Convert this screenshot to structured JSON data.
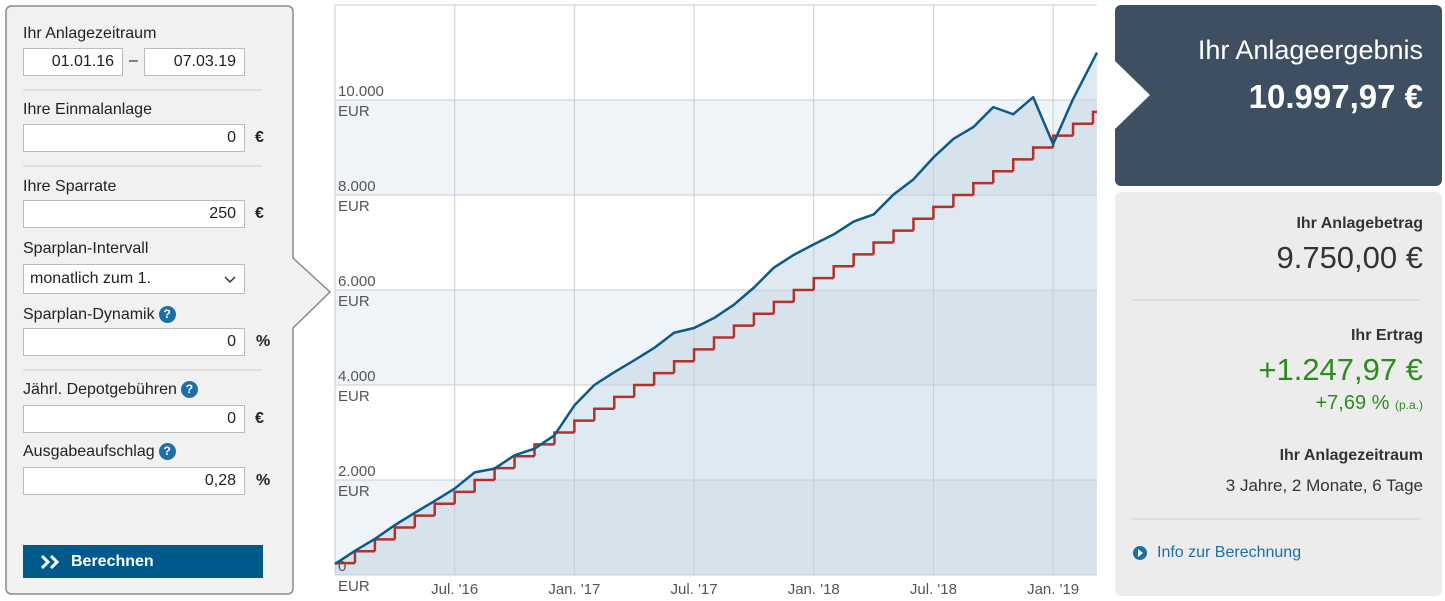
{
  "form": {
    "period_label": "Ihr Anlagezeitraum",
    "date_from": "01.01.16",
    "date_sep": "–",
    "date_to": "07.03.19",
    "lump_label": "Ihre Einmalanlage",
    "lump_value": "0",
    "lump_unit": "€",
    "rate_label": "Ihre Sparrate",
    "rate_value": "250",
    "rate_unit": "€",
    "interval_label": "Sparplan-Intervall",
    "interval_value": "monatlich zum 1.",
    "dynamic_label": "Sparplan-Dynamik",
    "dynamic_value": "0",
    "dynamic_unit": "%",
    "fee_label": "Jährl. Depotgebühren",
    "fee_value": "0",
    "fee_unit": "€",
    "surcharge_label": "Ausgabeaufschlag",
    "surcharge_value": "0,28",
    "surcharge_unit": "%",
    "help": "?",
    "button": "Berechnen"
  },
  "result": {
    "title": "Ihr Anlageergebnis",
    "total": "10.997,97 €",
    "invested_label": "Ihr Anlagebetrag",
    "invested": "9.750,00 €",
    "gain_label": "Ihr Ertrag",
    "gain": "+1.247,97 €",
    "gain_pct": "+7,69 %",
    "pa": "(p.a.)",
    "period_label": "Ihr Anlagezeitraum",
    "period": "3 Jahre, 2 Monate, 6 Tage",
    "link": "Info zur Berechnung"
  },
  "chart_data": {
    "type": "line",
    "y_unit": "EUR",
    "xlim": [
      0,
      38.2
    ],
    "xticks": [
      {
        "value": 6,
        "label": "Jul. '16"
      },
      {
        "value": 12,
        "label": "Jan. '17"
      },
      {
        "value": 18,
        "label": "Jul. '17"
      },
      {
        "value": 24,
        "label": "Jan. '18"
      },
      {
        "value": 30,
        "label": "Jul. '18"
      },
      {
        "value": 36,
        "label": "Jan. '19"
      }
    ],
    "ylim": [
      0,
      12000
    ],
    "yticks": [
      {
        "value": 0,
        "label": "0"
      },
      {
        "value": 2000,
        "label": "2.000"
      },
      {
        "value": 4000,
        "label": "4.000"
      },
      {
        "value": 6000,
        "label": "6.000"
      },
      {
        "value": 8000,
        "label": "8.000"
      },
      {
        "value": 10000,
        "label": "10.000"
      }
    ],
    "grid": true,
    "series": [
      {
        "color": "#0b5a8a",
        "x": [
          0,
          1,
          2,
          3,
          4,
          5,
          6,
          7,
          8,
          9,
          10,
          11,
          12,
          13,
          14,
          15,
          16,
          17,
          18,
          19,
          20,
          21,
          22,
          23,
          24,
          25,
          26,
          27,
          28,
          29,
          30,
          31,
          32,
          33,
          34,
          35,
          36,
          37,
          38.2
        ],
        "values": [
          230,
          510,
          760,
          1050,
          1310,
          1560,
          1820,
          2160,
          2240,
          2520,
          2660,
          2940,
          3570,
          4000,
          4270,
          4520,
          4780,
          5100,
          5200,
          5410,
          5690,
          6050,
          6470,
          6740,
          6960,
          7170,
          7440,
          7590,
          8010,
          8330,
          8790,
          9180,
          9430,
          9850,
          9700,
          10060,
          9070,
          10020,
          10998
        ]
      },
      {
        "color": "#b3312b",
        "step": true,
        "x": [
          0,
          1,
          2,
          3,
          4,
          5,
          6,
          7,
          8,
          9,
          10,
          11,
          12,
          13,
          14,
          15,
          16,
          17,
          18,
          19,
          20,
          21,
          22,
          23,
          24,
          25,
          26,
          27,
          28,
          29,
          30,
          31,
          32,
          33,
          34,
          35,
          36,
          37,
          38
        ],
        "values": [
          250,
          500,
          750,
          1000,
          1250,
          1500,
          1750,
          2000,
          2250,
          2500,
          2750,
          3000,
          3250,
          3500,
          3750,
          4000,
          4250,
          4500,
          4750,
          5000,
          5250,
          5500,
          5750,
          6000,
          6250,
          6500,
          6750,
          7000,
          7250,
          7500,
          7750,
          8000,
          8250,
          8500,
          8750,
          9000,
          9250,
          9500,
          9750
        ]
      }
    ]
  }
}
